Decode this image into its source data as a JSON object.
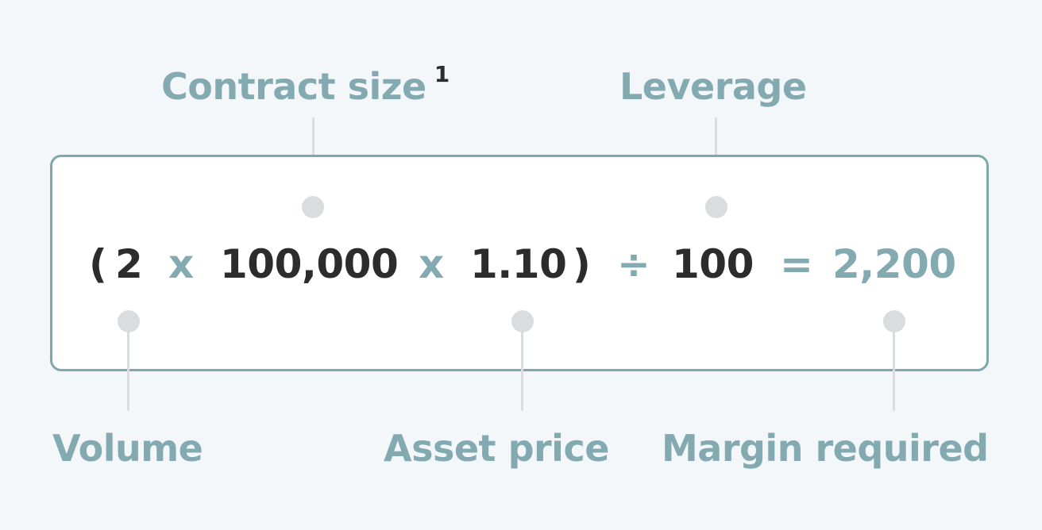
{
  "colors": {
    "background": "#f3f7f9",
    "accent": "#84aab1",
    "text_dark": "#2c2c2c",
    "connector": "#dadddf",
    "box_border": "#7fa7ae",
    "box_fill": "#ffffff"
  },
  "labels": {
    "contract_size": "Contract size",
    "contract_size_footnote": "1",
    "leverage": "Leverage",
    "volume": "Volume",
    "asset_price": "Asset price",
    "margin_required": "Margin required"
  },
  "formula": {
    "open_paren": "(",
    "volume": "2",
    "times_1": "x",
    "contract_size": "100,000",
    "times_2": "x",
    "asset_price": "1.10",
    "close_paren": ")",
    "divide": "÷",
    "leverage": "100",
    "equals": "=",
    "margin_required": "2,200"
  }
}
